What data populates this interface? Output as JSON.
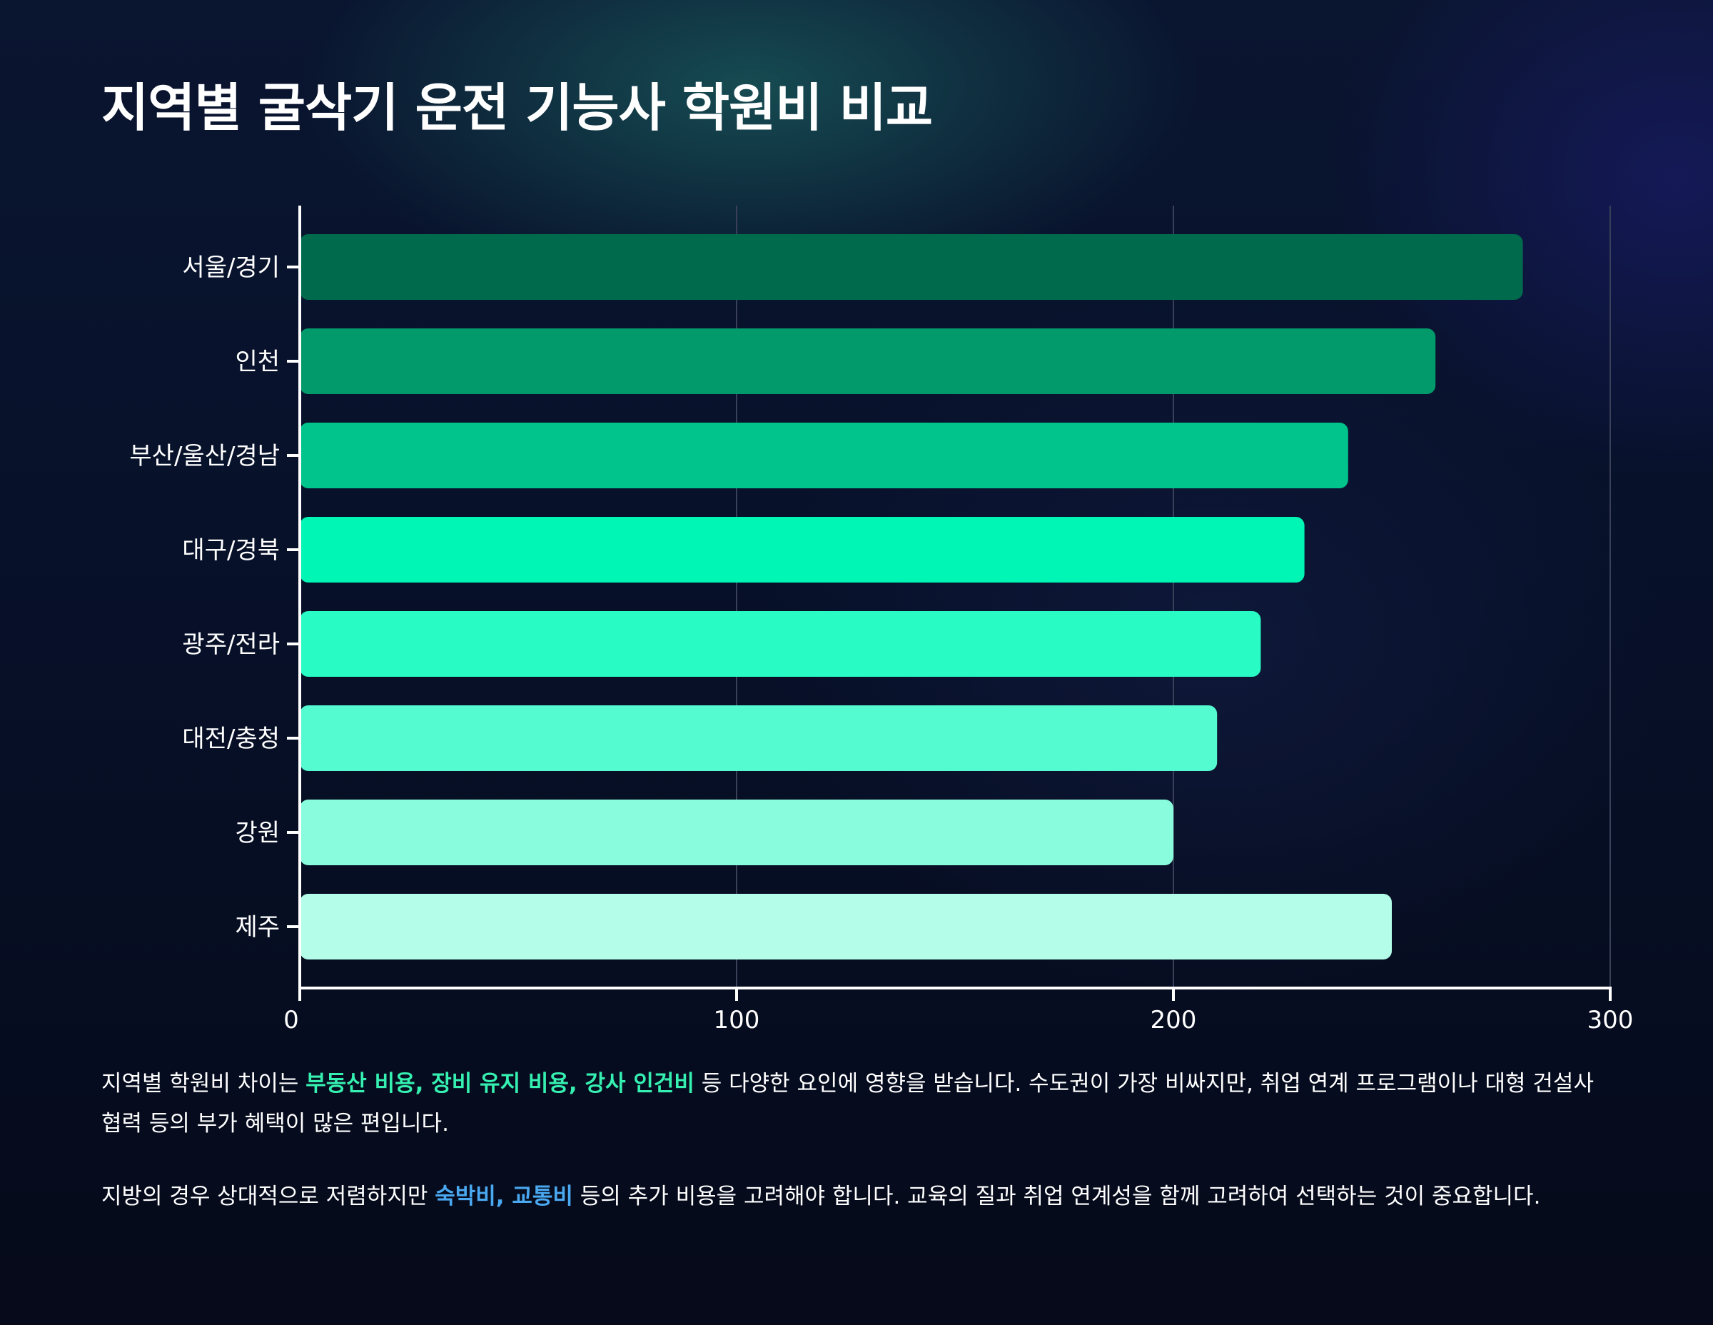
{
  "title": "지역별 굴삭기 운전 기능사 학원비 비교",
  "chart_data": {
    "type": "bar",
    "orientation": "horizontal",
    "title": "지역별 굴삭기 운전 기능사 학원비 비교",
    "xlabel": "",
    "ylabel": "",
    "categories": [
      "서울/경기",
      "인천",
      "부산/울산/경남",
      "대구/경북",
      "광주/전라",
      "대전/충청",
      "강원",
      "제주"
    ],
    "values": [
      280,
      260,
      240,
      230,
      220,
      210,
      200,
      250
    ],
    "colors": [
      "#006b4c",
      "#029a6a",
      "#00c48c",
      "#00f6b4",
      "#29fbc4",
      "#55fbd0",
      "#88fcdc",
      "#b3fde9"
    ],
    "xlim": [
      0,
      300
    ],
    "xticks": [
      "0",
      "100",
      "200",
      "300"
    ],
    "grid": true,
    "legend": "none"
  },
  "notes": {
    "p1": {
      "pre": "지역별 학원비 차이는 ",
      "hl": "부동산 비용, 장비 유지 비용, 강사 인건비",
      "post": " 등 다양한 요인에 영향을 받습니다. 수도권이 가장 비싸지만, 취업 연계 프로그램이나 대형 건설사 협력 등의 부가 혜택이 많은 편입니다."
    },
    "p2": {
      "pre": "지방의 경우 상대적으로 저렴하지만 ",
      "hl": "숙박비, 교통비",
      "post": " 등의 추가 비용을 고려해야 합니다. 교육의 질과 취업 연계성을 함께 고려하여 선택하는 것이 중요합니다."
    }
  }
}
